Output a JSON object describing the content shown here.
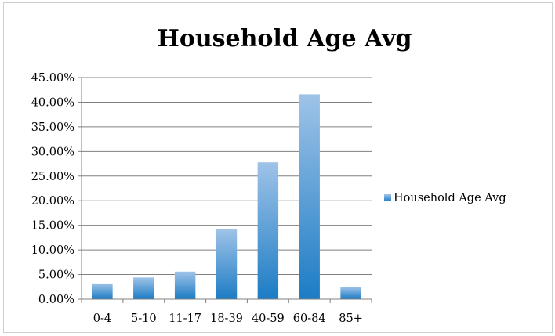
{
  "chart_data": {
    "type": "bar",
    "title": "Household Age Avg",
    "xlabel": "",
    "ylabel": "",
    "categories": [
      "0-4",
      "5-10",
      "11-17",
      "18-39",
      "40-59",
      "60-84",
      "85+"
    ],
    "series": [
      {
        "name": "Household Age Avg",
        "values": [
          3.2,
          4.4,
          5.6,
          14.2,
          27.8,
          41.6,
          2.5
        ]
      }
    ],
    "y_ticks": [
      "0.00%",
      "5.00%",
      "10.00%",
      "15.00%",
      "20.00%",
      "25.00%",
      "30.00%",
      "35.00%",
      "40.00%",
      "45.00%"
    ],
    "ylim": [
      0,
      45
    ],
    "y_step": 5,
    "y_format": "percent",
    "grid": true,
    "legend_position": "right",
    "colors": {
      "bar_top": "#9fc3e8",
      "bar_bottom": "#1c7cc4",
      "grid": "#808080",
      "axis": "#808080"
    }
  }
}
